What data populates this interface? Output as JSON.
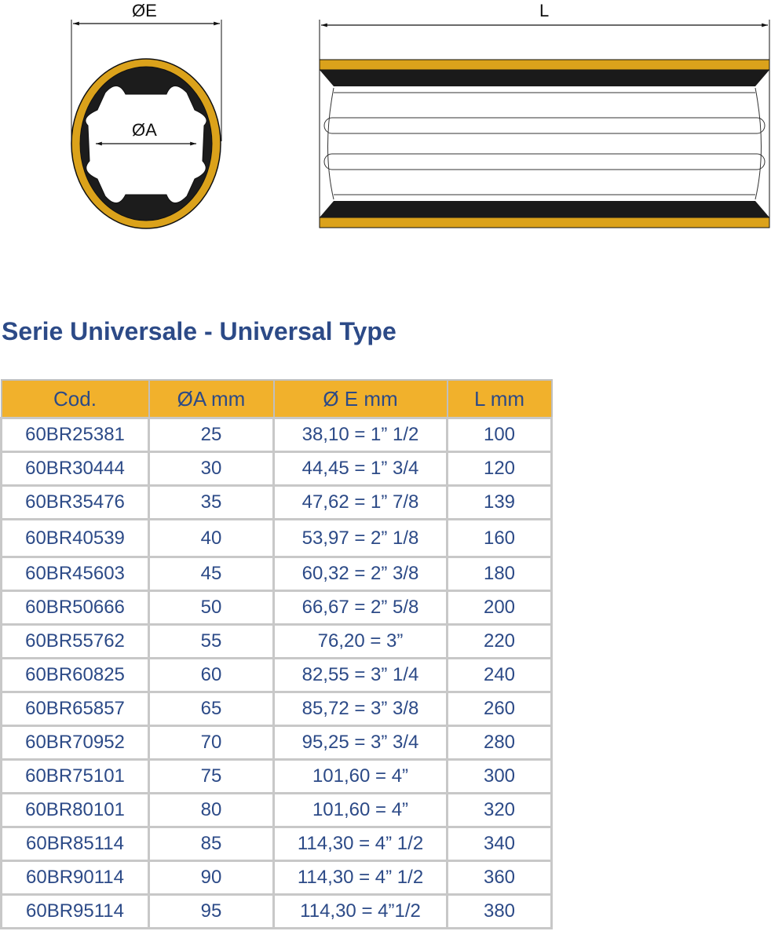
{
  "drawing": {
    "labels": {
      "outer_diameter": "ØE",
      "inner_diameter": "ØA",
      "length": "L"
    },
    "colors": {
      "shell": "#dba21b",
      "rubber": "#1a1a1a"
    }
  },
  "title": "Serie Universale - Universal Type",
  "table": {
    "headers": [
      "Cod.",
      "ØA mm",
      "Ø E mm",
      "L mm"
    ],
    "rows": [
      [
        "60BR25381",
        "25",
        "38,10 = 1” 1/2",
        "100"
      ],
      [
        "60BR30444",
        "30",
        "44,45 = 1” 3/4",
        "120"
      ],
      [
        "60BR35476",
        "35",
        "47,62 = 1” 7/8",
        "139"
      ],
      [
        "60BR40539",
        "40",
        "53,97 = 2” 1/8",
        "160"
      ],
      [
        "60BR45603",
        "45",
        "60,32 = 2” 3/8",
        "180"
      ],
      [
        "60BR50666",
        "50",
        "66,67 = 2” 5/8",
        "200"
      ],
      [
        "60BR55762",
        "55",
        "76,20 = 3”",
        "220"
      ],
      [
        "60BR60825",
        "60",
        "82,55 = 3” 1/4",
        "240"
      ],
      [
        "60BR65857",
        "65",
        "85,72 = 3” 3/8",
        "260"
      ],
      [
        "60BR70952",
        "70",
        "95,25 = 3” 3/4",
        "280"
      ],
      [
        "60BR75101",
        "75",
        "101,60 = 4”",
        "300"
      ],
      [
        "60BR80101",
        "80",
        "101,60 = 4”",
        "320"
      ],
      [
        "60BR85114",
        "85",
        "114,30 = 4” 1/2",
        "340"
      ],
      [
        "60BR90114",
        "90",
        "114,30 = 4” 1/2",
        "360"
      ],
      [
        "60BR95114",
        "95",
        "114,30 = 4”1/2",
        "380"
      ]
    ]
  }
}
